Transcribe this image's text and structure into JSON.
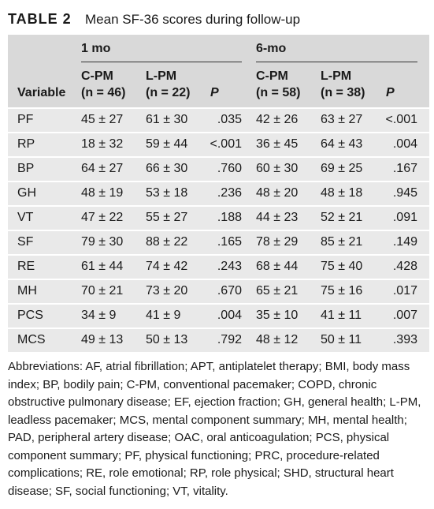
{
  "title": {
    "label": "TABLE 2",
    "text": "Mean SF-36 scores during follow-up"
  },
  "table": {
    "variable_header": "Variable",
    "groups": [
      "1 mo",
      "6-mo"
    ],
    "columns": [
      {
        "name": "C-PM",
        "n": "(n = 46)"
      },
      {
        "name": "L-PM",
        "n": "(n = 22)"
      },
      {
        "name": "P"
      },
      {
        "name": "C-PM",
        "n": "(n = 58)"
      },
      {
        "name": "L-PM",
        "n": "(n = 38)"
      },
      {
        "name": "P"
      }
    ],
    "rows": [
      [
        "PF",
        "45 ± 27",
        "61 ± 30",
        ".035",
        "42 ± 26",
        "63 ± 27",
        "<.001"
      ],
      [
        "RP",
        "18 ± 32",
        "59 ± 44",
        "<.001",
        "36 ± 45",
        "64 ± 43",
        ".004"
      ],
      [
        "BP",
        "64 ± 27",
        "66 ± 30",
        ".760",
        "60 ± 30",
        "69 ± 25",
        ".167"
      ],
      [
        "GH",
        "48 ± 19",
        "53 ± 18",
        ".236",
        "48 ± 20",
        "48 ± 18",
        ".945"
      ],
      [
        "VT",
        "47 ± 22",
        "55 ± 27",
        ".188",
        "44 ± 23",
        "52 ± 21",
        ".091"
      ],
      [
        "SF",
        "79 ± 30",
        "88 ± 22",
        ".165",
        "78 ± 29",
        "85 ± 21",
        ".149"
      ],
      [
        "RE",
        "61 ± 44",
        "74 ± 42",
        ".243",
        "68 ± 44",
        "75 ± 40",
        ".428"
      ],
      [
        "MH",
        "70 ± 21",
        "73 ± 20",
        ".670",
        "65 ± 21",
        "75 ± 16",
        ".017"
      ],
      [
        "PCS",
        "34 ± 9",
        "41 ± 9",
        ".004",
        "35 ± 10",
        "41 ± 11",
        ".007"
      ],
      [
        "MCS",
        "49 ± 13",
        "50 ± 13",
        ".792",
        "48 ± 12",
        "50 ± 11",
        ".393"
      ]
    ],
    "footnote": "Abbreviations: AF, atrial fibrillation; APT, antiplatelet therapy; BMI, body mass index; BP, bodily pain; C-PM, conventional pacemaker; COPD, chronic obstructive pulmonary disease; EF, ejection fraction; GH, general health; L-PM, leadless pacemaker; MCS, mental component summary; MH, mental health; PAD, peripheral artery disease; OAC, oral anticoagulation; PCS, physical component summary; PF, physical functioning; PRC, procedure-related complications; RE, role emotional; RP, role physical; SHD, structural heart disease; SF, social functioning; VT, vitality."
  }
}
